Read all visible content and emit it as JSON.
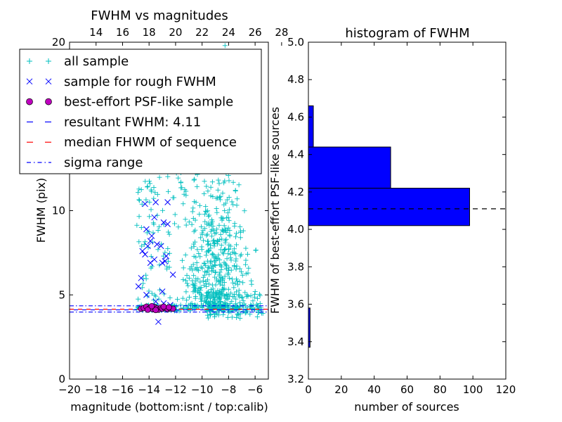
{
  "chart_data": [
    {
      "type": "scatter",
      "title": "FWHM vs magnitudes",
      "xlabel": "magnitude (bottom:isnt / top:calib)",
      "ylabel": "FWHM (pix)",
      "xlim": [
        -20,
        -5
      ],
      "ylim": [
        0,
        20
      ],
      "x_ticks": [
        -20,
        -18,
        -16,
        -14,
        -12,
        -10,
        -8,
        -6
      ],
      "y_ticks": [
        0,
        5,
        10
      ],
      "top_xticks": [
        14,
        16,
        18,
        20,
        22,
        24,
        26,
        28
      ],
      "top_xlim": [
        12,
        27
      ],
      "grid": false,
      "legend_position": "top-left",
      "legend": [
        {
          "label": "all sample",
          "marker": "plus",
          "color": "#00bfbf"
        },
        {
          "label": "sample for rough FWHM",
          "marker": "x",
          "color": "#0000ff"
        },
        {
          "label": "best-effort PSF-like sample",
          "marker": "circle",
          "color": "#bf00bf"
        },
        {
          "label": "resultant FWHM: 4.11",
          "marker": "dash",
          "color": "#0000ff"
        },
        {
          "label": "median FHWM of sequence",
          "marker": "dash",
          "color": "#ff0000"
        },
        {
          "label": "sigma range",
          "marker": "dashdot",
          "color": "#0000ff"
        }
      ],
      "hlines": {
        "resultant": 4.11,
        "median": 4.15,
        "sigma_low": 3.98,
        "sigma_high": 4.35
      },
      "rough_sample": [
        [
          -14.3,
          10.4
        ],
        [
          -13.5,
          10.5
        ],
        [
          -12.6,
          10.5
        ],
        [
          -13.6,
          9.6
        ],
        [
          -12.9,
          9.3
        ],
        [
          -12.6,
          9.2
        ],
        [
          -14.2,
          8.9
        ],
        [
          -13.8,
          8.5
        ],
        [
          -13.9,
          8.2
        ],
        [
          -14.1,
          7.9
        ],
        [
          -13.4,
          8.0
        ],
        [
          -13.1,
          7.9
        ],
        [
          -12.7,
          7.3
        ],
        [
          -14.5,
          7.6
        ],
        [
          -14.3,
          7.4
        ],
        [
          -13.6,
          7.1
        ],
        [
          -13.0,
          6.9
        ],
        [
          -12.8,
          7.0
        ],
        [
          -13.9,
          6.9
        ],
        [
          -14.8,
          5.5
        ],
        [
          -14.2,
          5.0
        ],
        [
          -13.5,
          4.6
        ],
        [
          -12.9,
          4.5
        ],
        [
          -13.3,
          3.4
        ],
        [
          -12.4,
          4.4
        ],
        [
          -13.0,
          5.2
        ],
        [
          -14.6,
          6.0
        ],
        [
          -12.2,
          6.2
        ]
      ],
      "psf_sample": [
        [
          -14.6,
          4.18
        ],
        [
          -14.4,
          4.22
        ],
        [
          -14.2,
          4.3
        ],
        [
          -14.0,
          4.18
        ],
        [
          -13.9,
          4.25
        ],
        [
          -13.7,
          4.15
        ],
        [
          -13.6,
          4.28
        ],
        [
          -13.4,
          4.2
        ],
        [
          -13.3,
          4.12
        ],
        [
          -13.1,
          4.24
        ],
        [
          -13.0,
          4.18
        ],
        [
          -12.8,
          4.22
        ],
        [
          -12.6,
          4.16
        ],
        [
          -12.4,
          4.2
        ],
        [
          -12.2,
          4.18
        ],
        [
          -14.1,
          4.12
        ],
        [
          -13.8,
          4.33
        ],
        [
          -13.5,
          4.1
        ],
        [
          -12.9,
          4.3
        ],
        [
          -12.5,
          4.26
        ]
      ]
    },
    {
      "type": "bar",
      "orientation": "horizontal",
      "title": "histogram of FWHM",
      "xlabel": "number of sources",
      "ylabel": "FWHM of best-effort PSF-like sources",
      "xlim": [
        0,
        120
      ],
      "ylim": [
        3.2,
        5.0
      ],
      "x_ticks": [
        0,
        20,
        40,
        60,
        80,
        100,
        120
      ],
      "y_ticks": [
        3.2,
        3.4,
        3.6,
        3.8,
        4.0,
        4.2,
        4.4,
        4.6,
        4.8,
        5.0
      ],
      "bars": [
        {
          "y0": 3.37,
          "y1": 3.58,
          "count": 1
        },
        {
          "y0": 4.02,
          "y1": 4.22,
          "count": 98
        },
        {
          "y0": 4.22,
          "y1": 4.44,
          "count": 50
        },
        {
          "y0": 4.44,
          "y1": 4.66,
          "count": 3
        }
      ],
      "bar_color": "#0000ff",
      "hline": 4.11
    }
  ]
}
